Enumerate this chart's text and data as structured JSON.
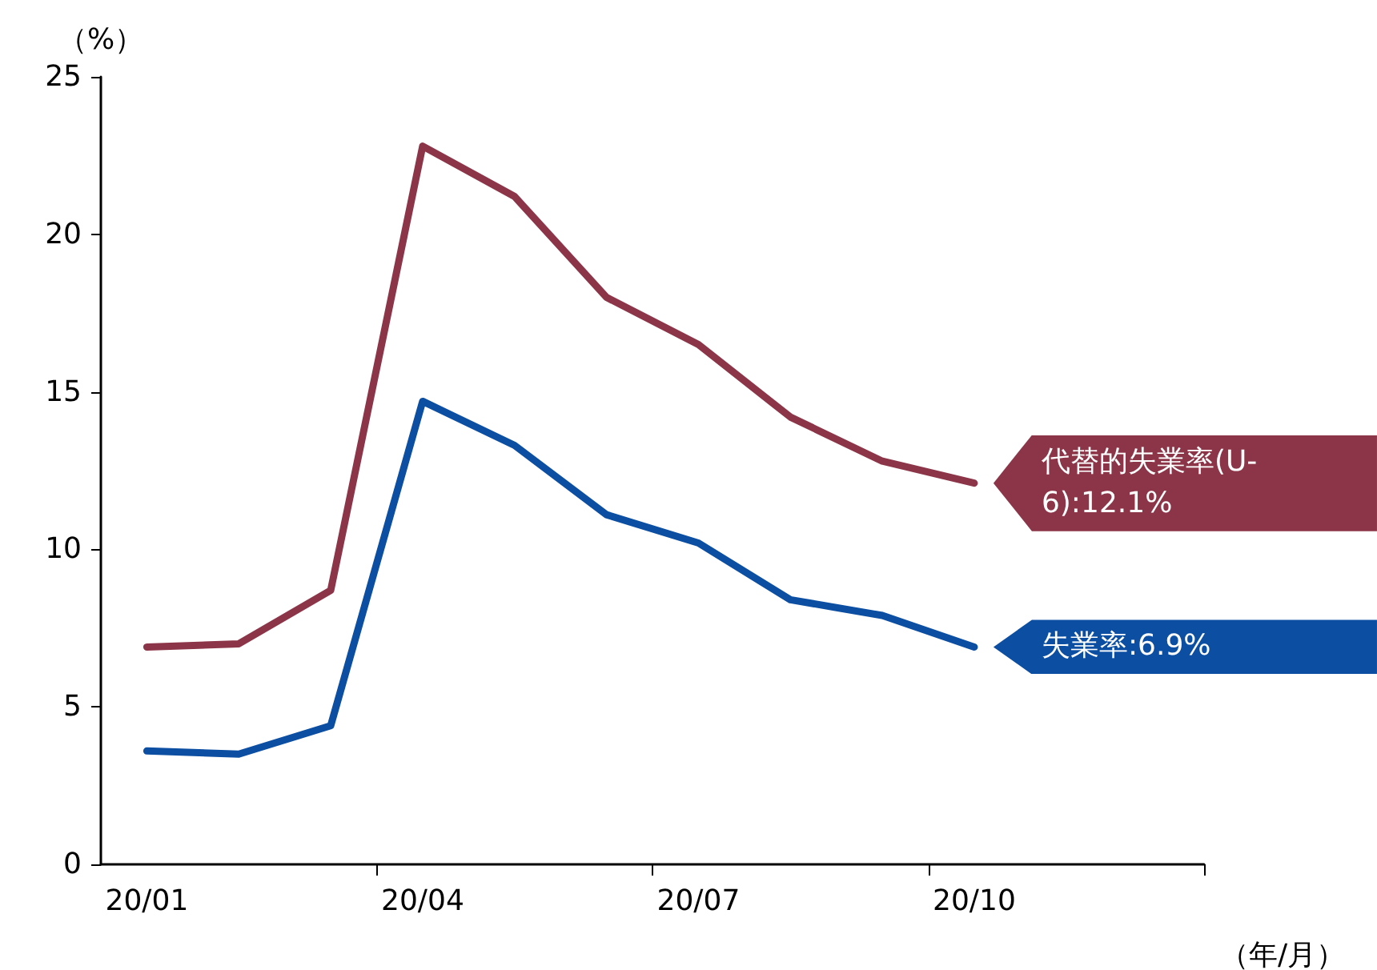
{
  "chart_data": {
    "type": "line",
    "xlabel": "（年/月）",
    "ylabel": "（%）",
    "categories": [
      "20/01",
      null,
      null,
      "20/04",
      null,
      null,
      "20/07",
      null,
      null,
      "20/10",
      null,
      null
    ],
    "series": [
      {
        "name": "代替的失業率(U-6):12.1%",
        "color": "#8c3548",
        "values": [
          6.9,
          7.0,
          8.7,
          22.8,
          21.2,
          18.0,
          16.5,
          14.2,
          12.8,
          12.1,
          null,
          null
        ]
      },
      {
        "name": "失業率:6.9%",
        "color": "#0b4ea2",
        "values": [
          3.6,
          3.5,
          4.4,
          14.7,
          13.3,
          11.1,
          10.2,
          8.4,
          7.9,
          6.9,
          null,
          null
        ]
      }
    ],
    "ylim": [
      0,
      25
    ],
    "yticks": [
      0,
      5,
      10,
      15,
      20,
      25
    ],
    "grid": false,
    "legend": false,
    "marker": "none",
    "line_style": "solid"
  }
}
